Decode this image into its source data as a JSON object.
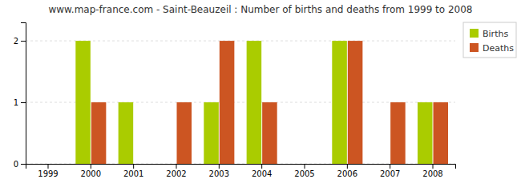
{
  "chart_data": {
    "type": "bar",
    "title": "www.map-france.com - Saint-Beauzeil : Number of births and deaths from 1999 to 2008",
    "categories": [
      "1999",
      "2000",
      "2001",
      "2002",
      "2003",
      "2004",
      "2005",
      "2006",
      "2007",
      "2008"
    ],
    "series": [
      {
        "name": "Births",
        "color": "#aacc00",
        "values": [
          0,
          2,
          1,
          0,
          1,
          2,
          0,
          2,
          0,
          1
        ]
      },
      {
        "name": "Deaths",
        "color": "#cc5522",
        "values": [
          0,
          1,
          0,
          1,
          2,
          1,
          0,
          2,
          1,
          1
        ]
      }
    ],
    "ylim": [
      0,
      2.3
    ],
    "yticks": [
      0,
      1,
      2
    ],
    "grid": true,
    "legend": "upper right"
  }
}
